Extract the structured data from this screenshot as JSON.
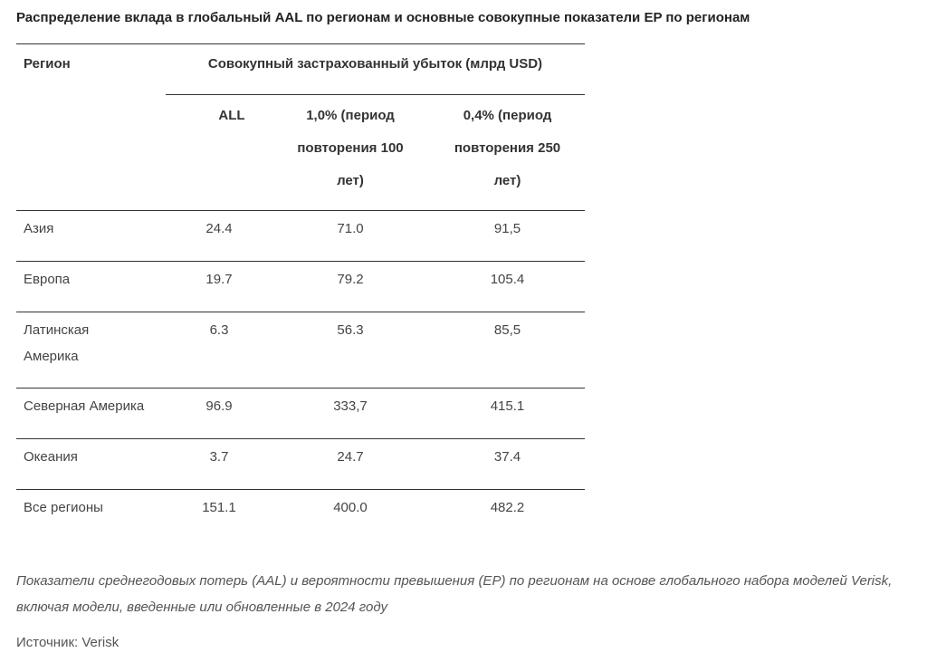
{
  "title": "Распределение вклада в глобальный AAL по регионам и основные совокупные показатели EP по регионам",
  "table": {
    "headers": {
      "region": "Регион",
      "group": "Совокупный застрахованный убыток (млрд USD)",
      "all": "ALL",
      "ep100": "1,0% (период повторения 100 лет)",
      "ep250": "0,4% (период повторения 250 лет)"
    },
    "rows": [
      {
        "region": "Азия",
        "all": "24.4",
        "ep100": "71.0",
        "ep250": "91,5"
      },
      {
        "region": "Европа",
        "all": "19.7",
        "ep100": "79.2",
        "ep250": "105.4"
      },
      {
        "region": "Латинская Америка",
        "all": "6.3",
        "ep100": "56.3",
        "ep250": "85,5"
      },
      {
        "region": "Северная Америка",
        "all": "96.9",
        "ep100": "333,7",
        "ep250": "415.1"
      },
      {
        "region": "Океания",
        "all": "3.7",
        "ep100": "24.7",
        "ep250": "37.4"
      },
      {
        "region": "Все регионы",
        "all": "151.1",
        "ep100": "400.0",
        "ep250": "482.2"
      }
    ]
  },
  "caption": "Показатели среднегодовых потерь (AAL) и вероятности превышения (EP) по регионам на основе глобального набора моделей Verisk, включая модели, введенные или обновленные в 2024 году",
  "source": "Источник: Verisk"
}
